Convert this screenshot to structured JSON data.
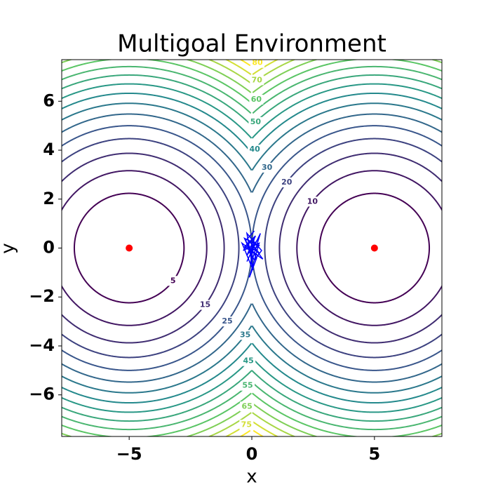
{
  "chart_data": {
    "type": "contour",
    "title": "Multigoal Environment",
    "x_label": "x",
    "y_label": "y",
    "levels": [
      5,
      10,
      15,
      20,
      25,
      30,
      35,
      40,
      45,
      50,
      55,
      60,
      65,
      70,
      75,
      80
    ],
    "colormap": "viridis",
    "goals": {
      "x": [
        -5,
        5
      ],
      "y": [
        0,
        0
      ],
      "color": "#ff0000"
    },
    "trajectory_color": "#0000ff",
    "trajectories": [
      {
        "x": [
          0,
          0.2,
          -0.1,
          0.3,
          -0.3,
          0.1,
          0.4,
          -0.2,
          0.05,
          -0.4,
          0.25
        ],
        "y": [
          0,
          0.3,
          -0.2,
          0.1,
          0.4,
          -0.5,
          -0.1,
          0.6,
          -0.9,
          0.2,
          -0.3
        ]
      },
      {
        "x": [
          0,
          -0.2,
          0.15,
          -0.35,
          0.3,
          -0.1,
          0.2,
          -0.25,
          0.1
        ],
        "y": [
          0,
          -0.3,
          0.5,
          -0.1,
          0.2,
          -1.2,
          -0.4,
          0.3,
          0.7
        ]
      },
      {
        "x": [
          0,
          0.3,
          -0.15,
          0.45,
          -0.3,
          0.1,
          -0.05,
          0.35,
          -0.2
        ],
        "y": [
          0,
          -0.2,
          0.35,
          -0.45,
          0.05,
          0.45,
          -0.7,
          0.6,
          -0.55
        ]
      }
    ],
    "xlim": [
      -7.75,
      7.75
    ],
    "ylim": [
      -7.7,
      7.7
    ],
    "xticks": [
      {
        "value": -5,
        "label": "−5"
      },
      0,
      5
    ],
    "yticks": [
      {
        "value": -6,
        "label": "−6"
      },
      {
        "value": -4,
        "label": "−4"
      },
      {
        "value": -2,
        "label": "−2"
      },
      0,
      2,
      4,
      6
    ]
  }
}
